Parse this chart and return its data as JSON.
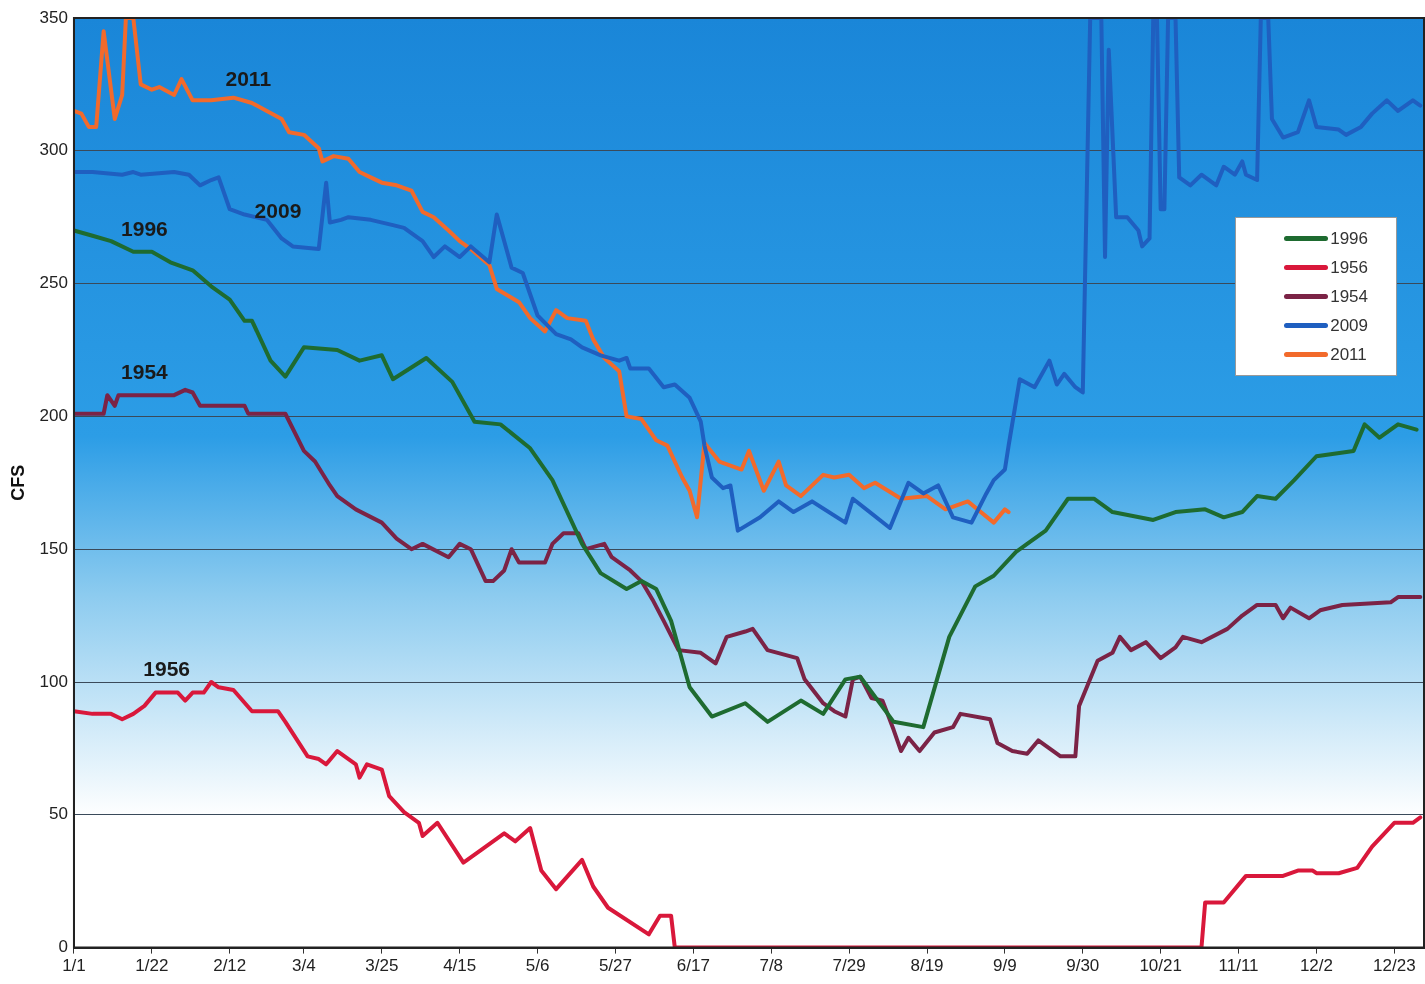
{
  "chart_data": {
    "type": "line",
    "ylabel": "CFS",
    "xlim": [
      "--01-01",
      "--12-31"
    ],
    "ylim": [
      0,
      350
    ],
    "yticks": [
      0,
      50,
      100,
      150,
      200,
      250,
      300,
      350
    ],
    "xticks": [
      {
        "value": "--01-01",
        "label": "1/1"
      },
      {
        "value": "--01-22",
        "label": "1/22"
      },
      {
        "value": "--02-12",
        "label": "2/12"
      },
      {
        "value": "--03-04",
        "label": "3/4"
      },
      {
        "value": "--03-25",
        "label": "3/25"
      },
      {
        "value": "--04-15",
        "label": "4/15"
      },
      {
        "value": "--05-06",
        "label": "5/6"
      },
      {
        "value": "--05-27",
        "label": "5/27"
      },
      {
        "value": "--06-17",
        "label": "6/17"
      },
      {
        "value": "--07-08",
        "label": "7/8"
      },
      {
        "value": "--07-29",
        "label": "7/29"
      },
      {
        "value": "--08-19",
        "label": "8/19"
      },
      {
        "value": "--09-09",
        "label": "9/9"
      },
      {
        "value": "--09-30",
        "label": "9/30"
      },
      {
        "value": "--10-21",
        "label": "10/21"
      },
      {
        "value": "--11-11",
        "label": "11/11"
      },
      {
        "value": "--12-02",
        "label": "12/2"
      },
      {
        "value": "--12-23",
        "label": "12/23"
      }
    ],
    "grid": "y",
    "legend": "right",
    "marker": "none",
    "line_style": "solid",
    "series": [
      {
        "name": "1996",
        "color": "#1e6b30",
        "x": [
          "--01-01",
          "--01-06",
          "--01-11",
          "--01-17",
          "--01-22",
          "--01-27",
          "--02-02",
          "--02-07",
          "--02-12",
          "--02-16",
          "--02-18",
          "--02-23",
          "--02-27",
          "--03-04",
          "--03-13",
          "--03-19",
          "--03-25",
          "--03-28",
          "--04-06",
          "--04-13",
          "--04-19",
          "--04-26",
          "--05-04",
          "--05-10",
          "--05-18",
          "--05-23",
          "--05-30",
          "--06-03",
          "--06-07",
          "--06-11",
          "--06-16",
          "--06-22",
          "--07-01",
          "--07-07",
          "--07-16",
          "--07-22",
          "--07-28",
          "--08-01",
          "--08-10",
          "--08-18",
          "--08-25",
          "--09-01",
          "--09-06",
          "--09-12",
          "--09-15",
          "--09-20",
          "--09-26",
          "--10-03",
          "--10-08",
          "--10-19",
          "--10-25",
          "--11-02",
          "--11-07",
          "--11-12",
          "--11-16",
          "--11-21",
          "--11-26",
          "--12-02",
          "--12-12",
          "--12-15",
          "--12-19",
          "--12-24",
          "--12-29"
        ],
        "values": [
          270,
          268,
          266,
          262,
          262,
          258,
          255,
          249,
          244,
          236,
          236,
          221,
          215,
          226,
          225,
          221,
          223,
          214,
          222,
          213,
          198,
          197,
          188,
          176,
          152,
          141,
          135,
          138,
          135,
          123,
          98,
          87,
          92,
          85,
          93,
          88,
          101,
          102,
          85,
          83,
          117,
          136,
          140,
          149,
          152,
          157,
          169,
          169,
          164,
          161,
          164,
          165,
          162,
          164,
          170,
          169,
          176,
          185,
          187,
          197,
          192,
          197,
          195
        ]
      },
      {
        "name": "1956",
        "color": "#d9183b",
        "x": [
          "--01-01",
          "--01-06",
          "--01-11",
          "--01-14",
          "--01-17",
          "--01-20",
          "--01-23",
          "--01-29",
          "--01-31",
          "--02-02",
          "--02-05",
          "--02-07",
          "--02-09",
          "--02-13",
          "--02-18",
          "--02-25",
          "--02-27",
          "--03-05",
          "--03-08",
          "--03-10",
          "--03-13",
          "--03-18",
          "--03-19",
          "--03-21",
          "--03-25",
          "--03-27",
          "--03-31",
          "--04-04",
          "--04-05",
          "--04-09",
          "--04-16",
          "--04-21",
          "--04-27",
          "--04-30",
          "--05-04",
          "--05-07",
          "--05-11",
          "--05-18",
          "--05-21",
          "--05-25",
          "--06-05",
          "--06-08",
          "--06-11",
          "--06-12",
          "--11-01",
          "--11-02",
          "--11-07",
          "--11-13",
          "--11-23",
          "--11-27",
          "--12-01",
          "--12-02",
          "--12-08",
          "--12-13",
          "--12-17",
          "--12-23",
          "--12-28",
          "--12-30"
        ],
        "values": [
          89,
          88,
          88,
          86,
          88,
          91,
          96,
          96,
          93,
          96,
          96,
          100,
          98,
          97,
          89,
          89,
          85,
          72,
          71,
          69,
          74,
          69,
          64,
          69,
          67,
          57,
          51,
          47,
          42,
          47,
          32,
          37,
          43,
          40,
          45,
          29,
          22,
          33,
          23,
          15,
          5,
          12,
          12,
          0,
          0,
          17,
          17,
          27,
          27,
          29,
          29,
          28,
          28,
          30,
          38,
          47,
          47,
          49
        ]
      },
      {
        "name": "1954",
        "color": "#7b2346",
        "x": [
          "--01-01",
          "--01-09",
          "--01-10",
          "--01-12",
          "--01-13",
          "--01-28",
          "--01-31",
          "--02-02",
          "--02-04",
          "--02-16",
          "--02-17",
          "--02-27",
          "--03-04",
          "--03-07",
          "--03-11",
          "--03-13",
          "--03-18",
          "--03-25",
          "--03-29",
          "--04-02",
          "--04-05",
          "--04-12",
          "--04-15",
          "--04-18",
          "--04-22",
          "--04-24",
          "--04-27",
          "--04-29",
          "--05-01",
          "--05-08",
          "--05-10",
          "--05-13",
          "--05-17",
          "--05-19",
          "--05-24",
          "--05-26",
          "--05-31",
          "--06-03",
          "--06-06",
          "--06-09",
          "--06-13",
          "--06-19",
          "--06-23",
          "--06-26",
          "--07-01",
          "--07-03",
          "--07-07",
          "--07-15",
          "--07-17",
          "--07-22",
          "--07-25",
          "--07-28",
          "--07-30",
          "--08-01",
          "--08-04",
          "--08-07",
          "--08-10",
          "--08-12",
          "--08-14",
          "--08-17",
          "--08-21",
          "--08-26",
          "--08-28",
          "--09-05",
          "--09-07",
          "--09-11",
          "--09-15",
          "--09-18",
          "--09-24",
          "--09-28",
          "--09-29",
          "--10-04",
          "--10-08",
          "--10-10",
          "--10-13",
          "--10-17",
          "--10-21",
          "--10-25",
          "--10-27",
          "--11-01",
          "--11-08",
          "--11-12",
          "--11-16",
          "--11-21",
          "--11-23",
          "--11-25",
          "--11-30",
          "--12-03",
          "--12-09",
          "--12-22",
          "--12-24",
          "--12-30"
        ],
        "values": [
          201,
          201,
          208,
          204,
          208,
          208,
          210,
          209,
          204,
          204,
          201,
          201,
          187,
          183,
          174,
          170,
          165,
          160,
          154,
          150,
          152,
          147,
          152,
          150,
          138,
          138,
          142,
          150,
          145,
          145,
          152,
          156,
          156,
          150,
          152,
          147,
          142,
          138,
          131,
          123,
          112,
          111,
          107,
          117,
          119,
          120,
          112,
          109,
          101,
          92,
          89,
          87,
          101,
          102,
          94,
          93,
          82,
          74,
          79,
          74,
          81,
          83,
          88,
          86,
          77,
          74,
          73,
          78,
          72,
          72,
          91,
          108,
          111,
          117,
          112,
          115,
          109,
          113,
          117,
          115,
          120,
          125,
          129,
          129,
          124,
          128,
          124,
          127,
          129,
          130,
          132,
          132
        ]
      },
      {
        "name": "2009",
        "color": "#1f5fc0",
        "x": [
          "--01-01",
          "--01-06",
          "--01-14",
          "--01-17",
          "--01-19",
          "--01-28",
          "--02-01",
          "--02-04",
          "--02-07",
          "--02-09",
          "--02-12",
          "--02-16",
          "--02-22",
          "--02-26",
          "--03-01",
          "--03-08",
          "--03-10",
          "--03-11",
          "--03-14",
          "--03-16",
          "--03-22",
          "--03-28",
          "--03-31",
          "--04-05",
          "--04-08",
          "--04-11",
          "--04-15",
          "--04-18",
          "--04-23",
          "--04-25",
          "--04-29",
          "--05-02",
          "--05-06",
          "--05-11",
          "--05-15",
          "--05-18",
          "--05-23",
          "--05-28",
          "--05-30",
          "--05-31",
          "--06-05",
          "--06-09",
          "--06-12",
          "--06-16",
          "--06-19",
          "--06-20",
          "--06-22",
          "--06-25",
          "--06-27",
          "--06-29",
          "--07-05",
          "--07-10",
          "--07-14",
          "--07-19",
          "--07-28",
          "--07-30",
          "--08-09",
          "--08-14",
          "--08-18",
          "--08-22",
          "--08-26",
          "--08-31",
          "--09-04",
          "--09-06",
          "--09-09",
          "--09-10",
          "--09-13",
          "--09-17",
          "--09-21",
          "--09-23",
          "--09-25",
          "--09-28",
          "--09-30",
          "--10-02",
          "--10-05",
          "--10-06",
          "--10-07",
          "--10-09",
          "--10-12",
          "--10-15",
          "--10-16",
          "--10-18",
          "--10-19",
          "--10-20",
          "--10-21",
          "--10-22",
          "--10-23",
          "--10-25",
          "--10-26",
          "--10-29",
          "--11-01",
          "--11-05",
          "--11-07",
          "--11-10",
          "--11-12",
          "--11-13",
          "--11-16",
          "--11-17",
          "--11-19",
          "--11-20",
          "--11-23",
          "--11-27",
          "--11-30",
          "--12-02",
          "--12-08",
          "--12-10",
          "--12-14",
          "--12-17",
          "--12-21",
          "--12-24",
          "--12-28",
          "--12-30"
        ],
        "values": [
          292,
          292,
          291,
          292,
          291,
          292,
          291,
          287,
          289,
          290,
          278,
          276,
          274,
          267,
          264,
          263,
          288,
          273,
          274,
          275,
          274,
          272,
          271,
          266,
          260,
          264,
          260,
          264,
          258,
          276,
          256,
          254,
          238,
          231,
          229,
          226,
          223,
          221,
          222,
          218,
          218,
          211,
          212,
          207,
          198,
          189,
          177,
          173,
          174,
          157,
          162,
          168,
          164,
          168,
          160,
          169,
          158,
          175,
          171,
          174,
          162,
          160,
          171,
          176,
          180,
          189,
          214,
          211,
          221,
          212,
          216,
          211,
          209,
          350,
          350,
          260,
          338,
          275,
          275,
          270,
          264,
          267,
          350,
          350,
          278,
          278,
          350,
          350,
          290,
          287,
          291,
          287,
          294,
          291,
          296,
          291,
          289,
          350,
          350,
          312,
          305,
          307,
          319,
          309,
          308,
          306,
          309,
          314,
          319,
          315,
          319,
          317
        ]
      },
      {
        "name": "2011",
        "color": "#f26a2b",
        "x": [
          "--01-01",
          "--01-03",
          "--01-05",
          "--01-07",
          "--01-09",
          "--01-12",
          "--01-14",
          "--01-15",
          "--01-17",
          "--01-19",
          "--01-22",
          "--01-24",
          "--01-28",
          "--01-30",
          "--02-02",
          "--02-07",
          "--02-13",
          "--02-18",
          "--02-22",
          "--02-26",
          "--02-28",
          "--03-04",
          "--03-08",
          "--03-09",
          "--03-12",
          "--03-16",
          "--03-19",
          "--03-22",
          "--03-25",
          "--03-29",
          "--04-02",
          "--04-05",
          "--04-08",
          "--04-12",
          "--04-15",
          "--04-18",
          "--04-23",
          "--04-25",
          "--05-01",
          "--05-04",
          "--05-08",
          "--05-11",
          "--05-14",
          "--05-19",
          "--05-21",
          "--05-24",
          "--05-28",
          "--05-30",
          "--06-03",
          "--06-07",
          "--06-10",
          "--06-14",
          "--06-16",
          "--06-18",
          "--06-20",
          "--06-24",
          "--06-30",
          "--07-02",
          "--07-06",
          "--07-10",
          "--07-12",
          "--07-16",
          "--07-22",
          "--07-25",
          "--07-29",
          "--08-02",
          "--08-05",
          "--08-12",
          "--08-19",
          "--08-24",
          "--08-30",
          "--09-06",
          "--09-09",
          "--09-10"
        ],
        "values": [
          315,
          314,
          309,
          309,
          345,
          312,
          321,
          350,
          350,
          325,
          323,
          324,
          321,
          327,
          319,
          319,
          320,
          318,
          315,
          312,
          307,
          306,
          301,
          296,
          298,
          297,
          292,
          290,
          288,
          287,
          285,
          277,
          275,
          270,
          266,
          263,
          257,
          248,
          243,
          237,
          232,
          240,
          237,
          236,
          229,
          222,
          217,
          200,
          199,
          191,
          189,
          177,
          172,
          162,
          190,
          183,
          180,
          187,
          172,
          183,
          174,
          170,
          178,
          177,
          178,
          173,
          175,
          169,
          170,
          165,
          168,
          160,
          165,
          164
        ]
      }
    ]
  }
}
